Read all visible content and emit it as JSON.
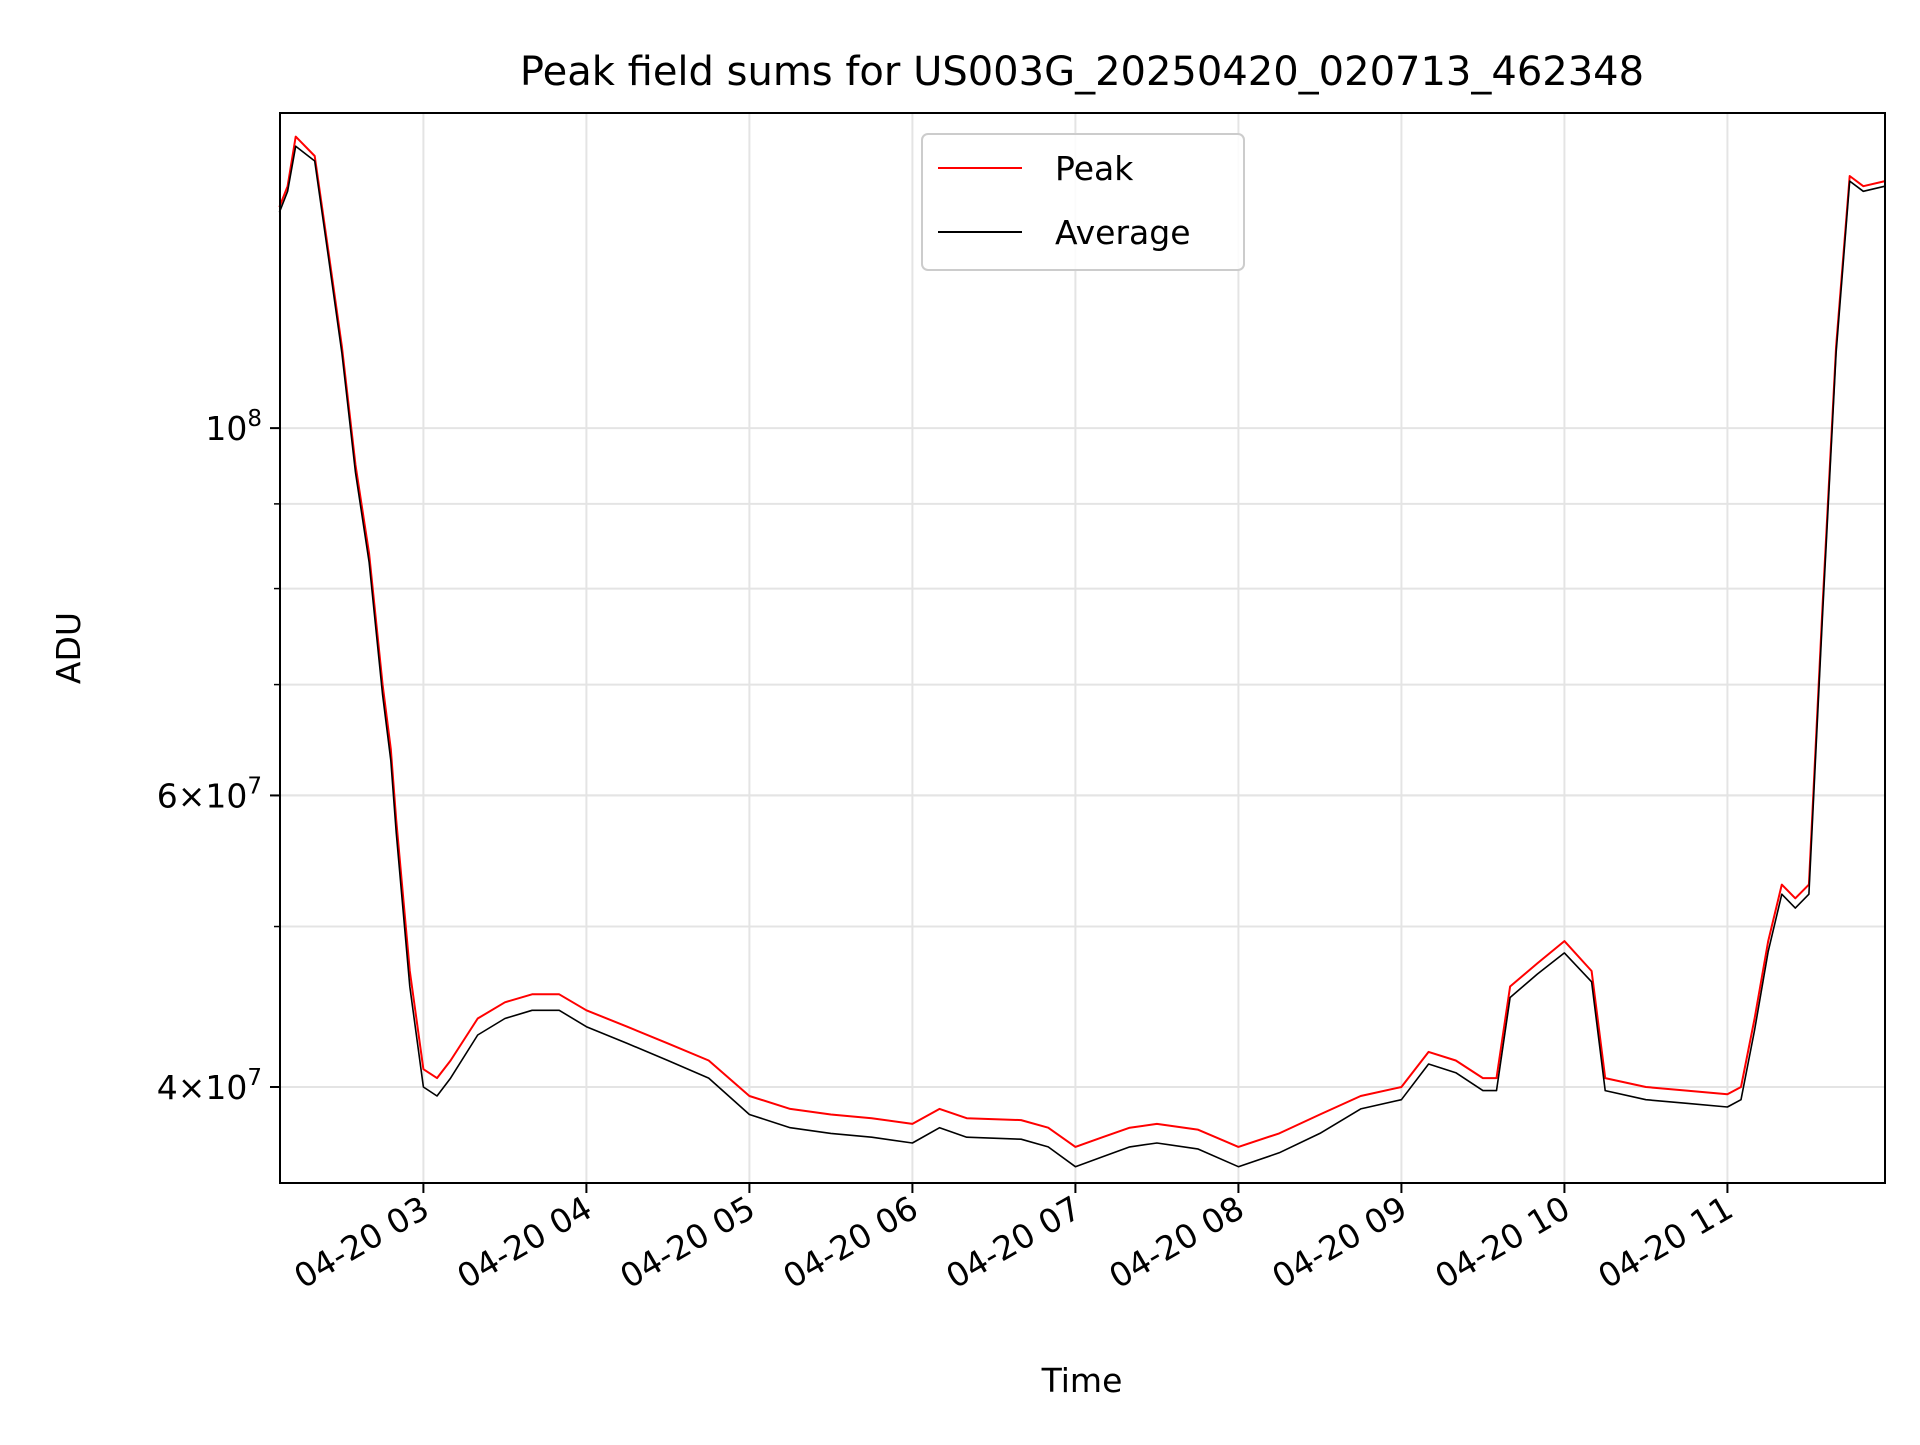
{
  "chart_data": {
    "type": "line",
    "title": "Peak field sums for US003G_20250420_020713_462348",
    "xlabel": "Time",
    "ylabel": "ADU",
    "yscale": "log",
    "x_range": [
      "2025-04-20 02:07:13",
      "2025-04-20 11:58:00"
    ],
    "ylim": [
      35000000,
      155000000
    ],
    "grid": true,
    "legend_position": "top-center",
    "x_ticks": [
      {
        "t": "2025-04-20 03:00",
        "label": "04-20 03"
      },
      {
        "t": "2025-04-20 04:00",
        "label": "04-20 04"
      },
      {
        "t": "2025-04-20 05:00",
        "label": "04-20 05"
      },
      {
        "t": "2025-04-20 06:00",
        "label": "04-20 06"
      },
      {
        "t": "2025-04-20 07:00",
        "label": "04-20 07"
      },
      {
        "t": "2025-04-20 08:00",
        "label": "04-20 08"
      },
      {
        "t": "2025-04-20 09:00",
        "label": "04-20 09"
      },
      {
        "t": "2025-04-20 10:00",
        "label": "04-20 10"
      },
      {
        "t": "2025-04-20 11:00",
        "label": "04-20 11"
      }
    ],
    "y_ticks": [
      {
        "value": 40000000,
        "base": "4",
        "exp": "7"
      },
      {
        "value": 60000000,
        "base": "6",
        "exp": "7"
      },
      {
        "value": 100000000,
        "base": "",
        "exp": "8"
      }
    ],
    "y_minor_ticks": [
      40000000,
      50000000,
      60000000,
      70000000,
      80000000,
      90000000
    ],
    "series": [
      {
        "name": "Peak",
        "color": "#ff0000",
        "points": [
          [
            "2025-04-20 02:07",
            136000000
          ],
          [
            "2025-04-20 02:10",
            140000000
          ],
          [
            "2025-04-20 02:13",
            150000000
          ],
          [
            "2025-04-20 02:20",
            146000000
          ],
          [
            "2025-04-20 02:25",
            128000000
          ],
          [
            "2025-04-20 02:30",
            112000000
          ],
          [
            "2025-04-20 02:35",
            95000000
          ],
          [
            "2025-04-20 02:40",
            84000000
          ],
          [
            "2025-04-20 02:45",
            70000000
          ],
          [
            "2025-04-20 02:48",
            64000000
          ],
          [
            "2025-04-20 02:50",
            58000000
          ],
          [
            "2025-04-20 02:55",
            47000000
          ],
          [
            "2025-04-20 03:00",
            41000000
          ],
          [
            "2025-04-20 03:05",
            40500000
          ],
          [
            "2025-04-20 03:10",
            41500000
          ],
          [
            "2025-04-20 03:20",
            44000000
          ],
          [
            "2025-04-20 03:30",
            45000000
          ],
          [
            "2025-04-20 03:40",
            45500000
          ],
          [
            "2025-04-20 03:50",
            45500000
          ],
          [
            "2025-04-20 04:00",
            44500000
          ],
          [
            "2025-04-20 04:15",
            43500000
          ],
          [
            "2025-04-20 04:30",
            42500000
          ],
          [
            "2025-04-20 04:45",
            41500000
          ],
          [
            "2025-04-20 05:00",
            39500000
          ],
          [
            "2025-04-20 05:15",
            38800000
          ],
          [
            "2025-04-20 05:30",
            38500000
          ],
          [
            "2025-04-20 05:45",
            38300000
          ],
          [
            "2025-04-20 06:00",
            38000000
          ],
          [
            "2025-04-20 06:10",
            38800000
          ],
          [
            "2025-04-20 06:20",
            38300000
          ],
          [
            "2025-04-20 06:40",
            38200000
          ],
          [
            "2025-04-20 06:50",
            37800000
          ],
          [
            "2025-04-20 07:00",
            36800000
          ],
          [
            "2025-04-20 07:10",
            37300000
          ],
          [
            "2025-04-20 07:20",
            37800000
          ],
          [
            "2025-04-20 07:30",
            38000000
          ],
          [
            "2025-04-20 07:45",
            37700000
          ],
          [
            "2025-04-20 08:00",
            36800000
          ],
          [
            "2025-04-20 08:15",
            37500000
          ],
          [
            "2025-04-20 08:30",
            38500000
          ],
          [
            "2025-04-20 08:45",
            39500000
          ],
          [
            "2025-04-20 09:00",
            40000000
          ],
          [
            "2025-04-20 09:10",
            42000000
          ],
          [
            "2025-04-20 09:20",
            41500000
          ],
          [
            "2025-04-20 09:30",
            40500000
          ],
          [
            "2025-04-20 09:35",
            40500000
          ],
          [
            "2025-04-20 09:40",
            46000000
          ],
          [
            "2025-04-20 09:50",
            47500000
          ],
          [
            "2025-04-20 10:00",
            49000000
          ],
          [
            "2025-04-20 10:10",
            47000000
          ],
          [
            "2025-04-20 10:15",
            40500000
          ],
          [
            "2025-04-20 10:30",
            40000000
          ],
          [
            "2025-04-20 10:45",
            39800000
          ],
          [
            "2025-04-20 11:00",
            39600000
          ],
          [
            "2025-04-20 11:05",
            40000000
          ],
          [
            "2025-04-20 11:10",
            44000000
          ],
          [
            "2025-04-20 11:15",
            49000000
          ],
          [
            "2025-04-20 11:20",
            53000000
          ],
          [
            "2025-04-20 11:25",
            52000000
          ],
          [
            "2025-04-20 11:30",
            53000000
          ],
          [
            "2025-04-20 11:35",
            78000000
          ],
          [
            "2025-04-20 11:40",
            112000000
          ],
          [
            "2025-04-20 11:45",
            142000000
          ],
          [
            "2025-04-20 11:50",
            140000000
          ],
          [
            "2025-04-20 11:58",
            141000000
          ]
        ]
      },
      {
        "name": "Average",
        "color": "#000000",
        "points": [
          [
            "2025-04-20 02:07",
            135000000
          ],
          [
            "2025-04-20 02:10",
            139000000
          ],
          [
            "2025-04-20 02:13",
            148000000
          ],
          [
            "2025-04-20 02:20",
            145000000
          ],
          [
            "2025-04-20 02:25",
            127000000
          ],
          [
            "2025-04-20 02:30",
            111000000
          ],
          [
            "2025-04-20 02:35",
            94000000
          ],
          [
            "2025-04-20 02:40",
            83000000
          ],
          [
            "2025-04-20 02:45",
            69000000
          ],
          [
            "2025-04-20 02:48",
            63000000
          ],
          [
            "2025-04-20 02:50",
            57000000
          ],
          [
            "2025-04-20 02:55",
            46000000
          ],
          [
            "2025-04-20 03:00",
            40000000
          ],
          [
            "2025-04-20 03:05",
            39500000
          ],
          [
            "2025-04-20 03:10",
            40500000
          ],
          [
            "2025-04-20 03:20",
            43000000
          ],
          [
            "2025-04-20 03:30",
            44000000
          ],
          [
            "2025-04-20 03:40",
            44500000
          ],
          [
            "2025-04-20 03:50",
            44500000
          ],
          [
            "2025-04-20 04:00",
            43500000
          ],
          [
            "2025-04-20 04:15",
            42500000
          ],
          [
            "2025-04-20 04:30",
            41500000
          ],
          [
            "2025-04-20 04:45",
            40500000
          ],
          [
            "2025-04-20 05:00",
            38500000
          ],
          [
            "2025-04-20 05:15",
            37800000
          ],
          [
            "2025-04-20 05:30",
            37500000
          ],
          [
            "2025-04-20 05:45",
            37300000
          ],
          [
            "2025-04-20 06:00",
            37000000
          ],
          [
            "2025-04-20 06:10",
            37800000
          ],
          [
            "2025-04-20 06:20",
            37300000
          ],
          [
            "2025-04-20 06:40",
            37200000
          ],
          [
            "2025-04-20 06:50",
            36800000
          ],
          [
            "2025-04-20 07:00",
            35800000
          ],
          [
            "2025-04-20 07:10",
            36300000
          ],
          [
            "2025-04-20 07:20",
            36800000
          ],
          [
            "2025-04-20 07:30",
            37000000
          ],
          [
            "2025-04-20 07:45",
            36700000
          ],
          [
            "2025-04-20 08:00",
            35800000
          ],
          [
            "2025-04-20 08:15",
            36500000
          ],
          [
            "2025-04-20 08:30",
            37500000
          ],
          [
            "2025-04-20 08:45",
            38800000
          ],
          [
            "2025-04-20 09:00",
            39300000
          ],
          [
            "2025-04-20 09:10",
            41300000
          ],
          [
            "2025-04-20 09:20",
            40800000
          ],
          [
            "2025-04-20 09:30",
            39800000
          ],
          [
            "2025-04-20 09:35",
            39800000
          ],
          [
            "2025-04-20 09:40",
            45300000
          ],
          [
            "2025-04-20 09:50",
            46800000
          ],
          [
            "2025-04-20 10:00",
            48200000
          ],
          [
            "2025-04-20 10:10",
            46300000
          ],
          [
            "2025-04-20 10:15",
            39800000
          ],
          [
            "2025-04-20 10:30",
            39300000
          ],
          [
            "2025-04-20 10:45",
            39100000
          ],
          [
            "2025-04-20 11:00",
            38900000
          ],
          [
            "2025-04-20 11:05",
            39300000
          ],
          [
            "2025-04-20 11:10",
            43300000
          ],
          [
            "2025-04-20 11:15",
            48300000
          ],
          [
            "2025-04-20 11:20",
            52300000
          ],
          [
            "2025-04-20 11:25",
            51300000
          ],
          [
            "2025-04-20 11:30",
            52300000
          ],
          [
            "2025-04-20 11:35",
            77000000
          ],
          [
            "2025-04-20 11:40",
            111000000
          ],
          [
            "2025-04-20 11:45",
            141000000
          ],
          [
            "2025-04-20 11:50",
            139000000
          ],
          [
            "2025-04-20 11:58",
            140000000
          ]
        ]
      }
    ]
  }
}
